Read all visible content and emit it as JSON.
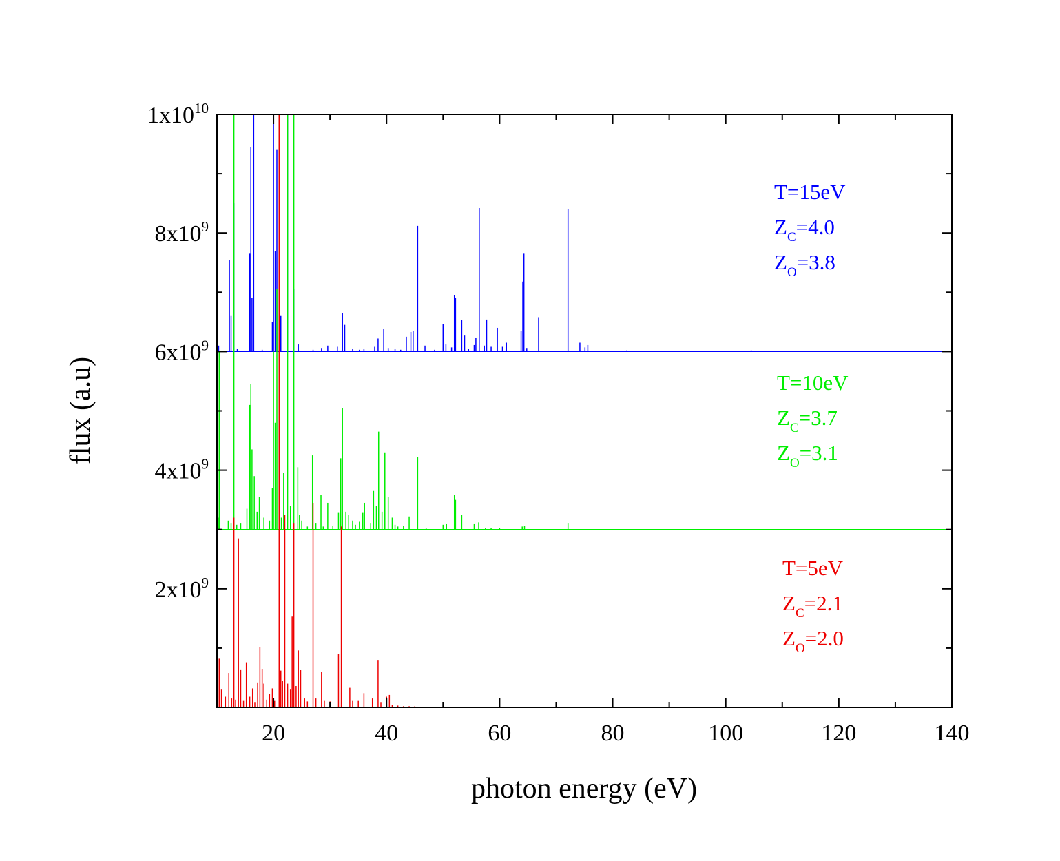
{
  "chart_data": {
    "type": "line",
    "xlabel": "photon energy (eV)",
    "ylabel": "flux (a.u)",
    "xlim": [
      10,
      140
    ],
    "ylim": [
      0,
      10000000000
    ],
    "x_ticks": [
      {
        "value": 20,
        "label": "20"
      },
      {
        "value": 40,
        "label": "40"
      },
      {
        "value": 60,
        "label": "60"
      },
      {
        "value": 80,
        "label": "80"
      },
      {
        "value": 100,
        "label": "100"
      },
      {
        "value": 120,
        "label": "120"
      },
      {
        "value": 140,
        "label": "140"
      }
    ],
    "y_ticks": [
      {
        "value": 2000000000,
        "mantissa": "2x10",
        "exponent": "9"
      },
      {
        "value": 4000000000,
        "mantissa": "4x10",
        "exponent": "9"
      },
      {
        "value": 6000000000,
        "mantissa": "6x10",
        "exponent": "9"
      },
      {
        "value": 8000000000,
        "mantissa": "8x10",
        "exponent": "9"
      },
      {
        "value": 10000000000,
        "mantissa": "1x10",
        "exponent": "10"
      }
    ],
    "grid": false,
    "series": [
      {
        "color": "#0000ff",
        "baseline": 6000000000,
        "annotation": [
          {
            "main": "T=15eV"
          },
          {
            "main": "Z",
            "sub": "C",
            "rest": "=4.0"
          },
          {
            "main": "Z",
            "sub": "O",
            "rest": "=3.8"
          }
        ],
        "lines": [
          [
            10.3,
            6100000000
          ],
          [
            12.2,
            7550000000
          ],
          [
            12.5,
            6600000000
          ],
          [
            13.0,
            8500000000
          ],
          [
            13.6,
            6050000000
          ],
          [
            15.8,
            7650000000
          ],
          [
            16.0,
            9450000000
          ],
          [
            16.2,
            6900000000
          ],
          [
            16.5,
            10000000000
          ],
          [
            18.0,
            6030000000
          ],
          [
            19.8,
            6500000000
          ],
          [
            20.0,
            10000000000
          ],
          [
            20.3,
            7700000000
          ],
          [
            20.6,
            9400000000
          ],
          [
            21.0,
            10000000000
          ],
          [
            21.3,
            6600000000
          ],
          [
            22.5,
            10000000000
          ],
          [
            23.6,
            7050000000
          ],
          [
            24.4,
            6120000000
          ],
          [
            27.0,
            6030000000
          ],
          [
            28.5,
            6060000000
          ],
          [
            29.6,
            6100000000
          ],
          [
            31.3,
            6080000000
          ],
          [
            32.2,
            6650000000
          ],
          [
            32.6,
            6450000000
          ],
          [
            34.0,
            6040000000
          ],
          [
            35.2,
            6030000000
          ],
          [
            36.0,
            6050000000
          ],
          [
            37.9,
            6080000000
          ],
          [
            38.5,
            6220000000
          ],
          [
            39.5,
            6380000000
          ],
          [
            40.3,
            6060000000
          ],
          [
            41.5,
            6040000000
          ],
          [
            42.5,
            6030000000
          ],
          [
            43.5,
            6250000000
          ],
          [
            44.3,
            6330000000
          ],
          [
            44.7,
            6350000000
          ],
          [
            45.5,
            8120000000
          ],
          [
            46.8,
            6100000000
          ],
          [
            48.5,
            6030000000
          ],
          [
            50.0,
            6460000000
          ],
          [
            50.5,
            6120000000
          ],
          [
            51.5,
            6070000000
          ],
          [
            52.0,
            6950000000
          ],
          [
            52.2,
            6900000000
          ],
          [
            53.3,
            6530000000
          ],
          [
            53.8,
            6270000000
          ],
          [
            54.5,
            6050000000
          ],
          [
            55.5,
            6110000000
          ],
          [
            55.8,
            6230000000
          ],
          [
            56.4,
            8420000000
          ],
          [
            57.3,
            6100000000
          ],
          [
            57.7,
            6540000000
          ],
          [
            58.5,
            6080000000
          ],
          [
            59.6,
            6400000000
          ],
          [
            60.5,
            6080000000
          ],
          [
            61.2,
            6150000000
          ],
          [
            63.8,
            6350000000
          ],
          [
            64.1,
            7180000000
          ],
          [
            64.3,
            7650000000
          ],
          [
            64.8,
            6060000000
          ],
          [
            66.9,
            6580000000
          ],
          [
            72.1,
            8400000000
          ],
          [
            74.2,
            6150000000
          ],
          [
            75.1,
            6070000000
          ],
          [
            75.6,
            6110000000
          ],
          [
            82.5,
            6020000000
          ],
          [
            104.5,
            6020000000
          ]
        ]
      },
      {
        "color": "#00ee00",
        "baseline": 3000000000,
        "annotation": [
          {
            "main": "T=10eV"
          },
          {
            "main": "Z",
            "sub": "C",
            "rest": "=3.7"
          },
          {
            "main": "Z",
            "sub": "O",
            "rest": "=3.1"
          }
        ],
        "lines": [
          [
            10.2,
            3200000000
          ],
          [
            10.4,
            6000000000
          ],
          [
            12.0,
            3150000000
          ],
          [
            12.5,
            3100000000
          ],
          [
            13.0,
            10000000000
          ],
          [
            13.5,
            3080000000
          ],
          [
            14.2,
            3100000000
          ],
          [
            15.3,
            3350000000
          ],
          [
            15.8,
            5100000000
          ],
          [
            16.0,
            5450000000
          ],
          [
            16.2,
            4350000000
          ],
          [
            16.6,
            3900000000
          ],
          [
            17.1,
            3300000000
          ],
          [
            17.5,
            3550000000
          ],
          [
            18.3,
            3200000000
          ],
          [
            19.3,
            3150000000
          ],
          [
            19.8,
            3700000000
          ],
          [
            20.0,
            6000000000
          ],
          [
            20.3,
            4800000000
          ],
          [
            20.6,
            7050000000
          ],
          [
            21.0,
            10000000000
          ],
          [
            21.4,
            3200000000
          ],
          [
            21.8,
            3950000000
          ],
          [
            22.5,
            10000000000
          ],
          [
            23.0,
            3400000000
          ],
          [
            23.6,
            10000000000
          ],
          [
            24.3,
            4050000000
          ],
          [
            24.6,
            3250000000
          ],
          [
            25.0,
            3150000000
          ],
          [
            26.0,
            3050000000
          ],
          [
            26.9,
            4250000000
          ],
          [
            27.5,
            3100000000
          ],
          [
            28.4,
            3580000000
          ],
          [
            28.8,
            3050000000
          ],
          [
            29.6,
            3450000000
          ],
          [
            30.5,
            3060000000
          ],
          [
            31.5,
            3280000000
          ],
          [
            31.9,
            4200000000
          ],
          [
            32.2,
            5050000000
          ],
          [
            32.8,
            3300000000
          ],
          [
            33.3,
            3250000000
          ],
          [
            34.0,
            3150000000
          ],
          [
            34.5,
            3080000000
          ],
          [
            35.2,
            3130000000
          ],
          [
            35.8,
            3280000000
          ],
          [
            36.1,
            3450000000
          ],
          [
            37.2,
            3100000000
          ],
          [
            37.7,
            3650000000
          ],
          [
            38.2,
            3400000000
          ],
          [
            38.6,
            4650000000
          ],
          [
            39.2,
            3300000000
          ],
          [
            39.7,
            4300000000
          ],
          [
            40.3,
            3550000000
          ],
          [
            41.0,
            3200000000
          ],
          [
            41.5,
            3080000000
          ],
          [
            42.0,
            3050000000
          ],
          [
            43.0,
            3060000000
          ],
          [
            44.0,
            3220000000
          ],
          [
            45.5,
            4220000000
          ],
          [
            47.0,
            3030000000
          ],
          [
            50.0,
            3080000000
          ],
          [
            50.6,
            3090000000
          ],
          [
            52.0,
            3580000000
          ],
          [
            52.2,
            3500000000
          ],
          [
            53.3,
            3250000000
          ],
          [
            55.5,
            3090000000
          ],
          [
            56.3,
            3120000000
          ],
          [
            57.5,
            3030000000
          ],
          [
            58.5,
            3030000000
          ],
          [
            60.0,
            3030000000
          ],
          [
            64.0,
            3050000000
          ],
          [
            64.4,
            3060000000
          ],
          [
            72.1,
            3100000000
          ]
        ]
      },
      {
        "color": "#ee0000",
        "baseline": 0,
        "annotation": [
          {
            "main": "T=5eV"
          },
          {
            "main": "Z",
            "sub": "C",
            "rest": "=2.1"
          },
          {
            "main": "Z",
            "sub": "O",
            "rest": "=2.0"
          }
        ],
        "lines": [
          [
            10.1,
            10000000000
          ],
          [
            10.4,
            820000000
          ],
          [
            10.8,
            300000000
          ],
          [
            11.5,
            180000000
          ],
          [
            12.1,
            580000000
          ],
          [
            12.6,
            150000000
          ],
          [
            13.0,
            3200000000
          ],
          [
            13.3,
            130000000
          ],
          [
            13.8,
            2850000000
          ],
          [
            14.2,
            640000000
          ],
          [
            14.7,
            120000000
          ],
          [
            15.2,
            760000000
          ],
          [
            15.8,
            180000000
          ],
          [
            16.3,
            320000000
          ],
          [
            16.7,
            90000000
          ],
          [
            17.2,
            420000000
          ],
          [
            17.6,
            1020000000
          ],
          [
            18.0,
            650000000
          ],
          [
            18.3,
            400000000
          ],
          [
            18.8,
            130000000
          ],
          [
            19.3,
            230000000
          ],
          [
            19.8,
            320000000
          ],
          [
            20.2,
            120000000
          ],
          [
            21.0,
            10000000000
          ],
          [
            21.3,
            620000000
          ],
          [
            21.6,
            450000000
          ],
          [
            22.0,
            3250000000
          ],
          [
            22.5,
            400000000
          ],
          [
            23.0,
            300000000
          ],
          [
            23.3,
            1530000000
          ],
          [
            23.6,
            3100000000
          ],
          [
            24.0,
            360000000
          ],
          [
            24.4,
            960000000
          ],
          [
            24.8,
            630000000
          ],
          [
            25.5,
            150000000
          ],
          [
            26.0,
            100000000
          ],
          [
            27.0,
            3450000000
          ],
          [
            27.5,
            150000000
          ],
          [
            28.5,
            600000000
          ],
          [
            29.0,
            120000000
          ],
          [
            30.0,
            100000000
          ],
          [
            31.5,
            900000000
          ],
          [
            32.0,
            3050000000
          ],
          [
            33.5,
            330000000
          ],
          [
            34.0,
            120000000
          ],
          [
            35.0,
            120000000
          ],
          [
            36.0,
            240000000
          ],
          [
            37.5,
            150000000
          ],
          [
            38.5,
            800000000
          ],
          [
            39.0,
            90000000
          ],
          [
            40.0,
            180000000
          ],
          [
            40.5,
            210000000
          ],
          [
            41.0,
            40000000
          ],
          [
            42.0,
            30000000
          ],
          [
            43.0,
            20000000
          ],
          [
            44.0,
            20000000
          ],
          [
            45.0,
            20000000
          ]
        ]
      }
    ]
  }
}
